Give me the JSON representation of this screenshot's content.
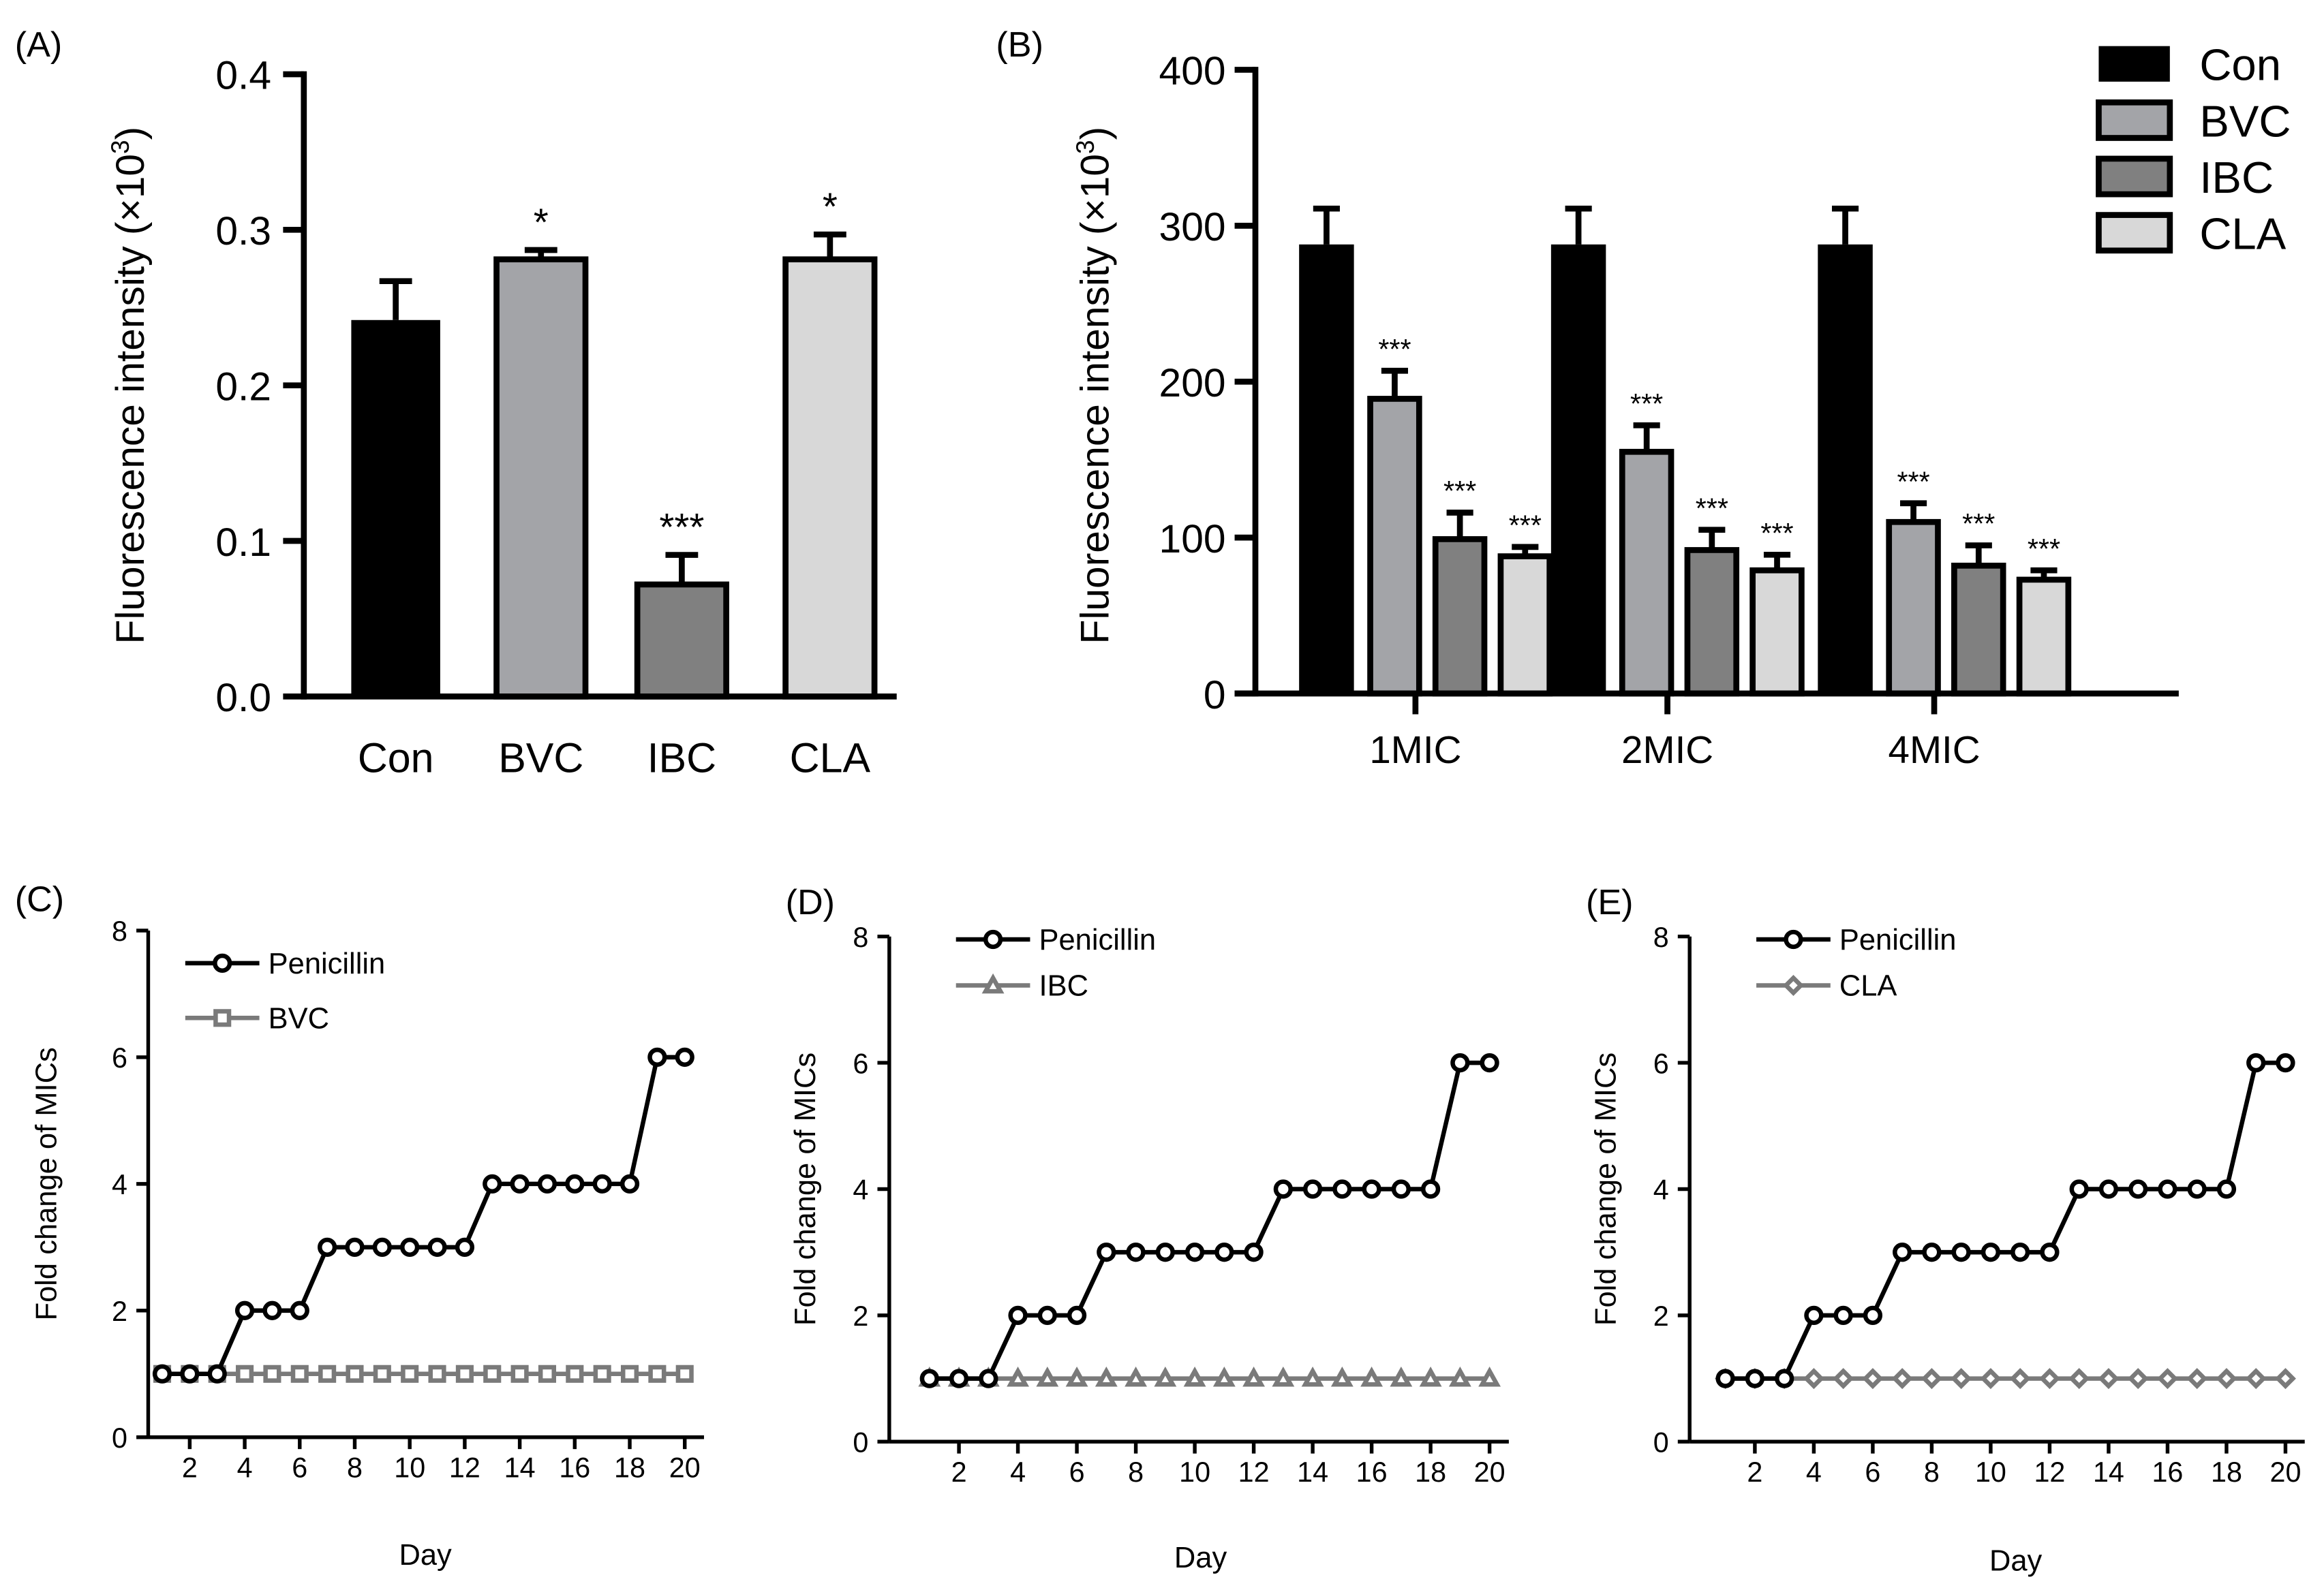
{
  "chart_data": [
    {
      "panel": "(A)",
      "type": "bar",
      "ylabel": "Fluorescence intensity (×10",
      "ylabel_sup": "3",
      "ylabel_end": ")",
      "ylim": [
        0,
        0.4
      ],
      "yticks": [
        "0.0",
        "0.1",
        "0.2",
        "0.3",
        "0.4"
      ],
      "ytick_values": [
        0,
        0.1,
        0.2,
        0.3,
        0.4
      ],
      "categories": [
        "Con",
        "BVC",
        "IBC",
        "CLA"
      ],
      "values": [
        0.242,
        0.281,
        0.072,
        0.281
      ],
      "error_upper": [
        0.267,
        0.287,
        0.091,
        0.297
      ],
      "significance": [
        "",
        "*",
        "***",
        "*"
      ],
      "colors": [
        "#000000",
        "#a3a4a8",
        "#808080",
        "#d8d8d8"
      ]
    },
    {
      "panel": "(B)",
      "type": "bar",
      "ylabel": "Fluorescence intensity (×10",
      "ylabel_sup": "3",
      "ylabel_end": ")",
      "ylim": [
        0,
        400
      ],
      "yticks": [
        "0",
        "100",
        "200",
        "300",
        "400"
      ],
      "ytick_values": [
        0,
        100,
        200,
        300,
        400
      ],
      "categories": [
        "1MIC",
        "2MIC",
        "4MIC"
      ],
      "legend_position": "top-right",
      "series": [
        {
          "name": "Con",
          "color": "#000000",
          "values": [
            288,
            288,
            288
          ],
          "error_upper": [
            311,
            311,
            311
          ],
          "significance": [
            "",
            "",
            ""
          ]
        },
        {
          "name": "BVC",
          "color": "#a3a4a8",
          "values": [
            189,
            155,
            110
          ],
          "error_upper": [
            207,
            172,
            122
          ],
          "significance": [
            "***",
            "***",
            "***"
          ]
        },
        {
          "name": "IBC",
          "color": "#808080",
          "values": [
            99,
            92,
            82
          ],
          "error_upper": [
            116,
            105,
            95
          ],
          "significance": [
            "***",
            "***",
            "***"
          ]
        },
        {
          "name": "CLA",
          "color": "#d8d8d8",
          "values": [
            88,
            79,
            73
          ],
          "error_upper": [
            94,
            89,
            79
          ],
          "significance": [
            "***",
            "***",
            "***"
          ]
        }
      ]
    },
    {
      "panel": "(C)",
      "type": "line",
      "xlabel": "Day",
      "ylabel": "Fold change of MICs",
      "ylim": [
        0,
        8
      ],
      "yticks": [
        "0",
        "2",
        "4",
        "6",
        "8"
      ],
      "xticks": [
        "2",
        "4",
        "6",
        "8",
        "10",
        "12",
        "14",
        "16",
        "18",
        "20"
      ],
      "x": [
        1,
        2,
        3,
        4,
        5,
        6,
        7,
        8,
        9,
        10,
        11,
        12,
        13,
        14,
        15,
        16,
        17,
        18,
        19,
        20
      ],
      "series": [
        {
          "name": "Penicillin",
          "marker": "circle",
          "color": "#000000",
          "values": [
            1,
            1,
            1,
            2,
            2,
            2,
            3,
            3,
            3,
            3,
            3,
            3,
            4,
            4,
            4,
            4,
            4,
            4,
            6,
            6
          ]
        },
        {
          "name": "BVC",
          "marker": "square",
          "color": "#7a7a7a",
          "values": [
            1,
            1,
            1,
            1,
            1,
            1,
            1,
            1,
            1,
            1,
            1,
            1,
            1,
            1,
            1,
            1,
            1,
            1,
            1,
            1
          ]
        }
      ]
    },
    {
      "panel": "(D)",
      "type": "line",
      "xlabel": "Day",
      "ylabel": "Fold change of MICs",
      "ylim": [
        0,
        8
      ],
      "yticks": [
        "0",
        "2",
        "4",
        "6",
        "8"
      ],
      "xticks": [
        "2",
        "4",
        "6",
        "8",
        "10",
        "12",
        "14",
        "16",
        "18",
        "20"
      ],
      "x": [
        1,
        2,
        3,
        4,
        5,
        6,
        7,
        8,
        9,
        10,
        11,
        12,
        13,
        14,
        15,
        16,
        17,
        18,
        19,
        20
      ],
      "series": [
        {
          "name": "Penicillin",
          "marker": "circle",
          "color": "#000000",
          "values": [
            1,
            1,
            1,
            2,
            2,
            2,
            3,
            3,
            3,
            3,
            3,
            3,
            4,
            4,
            4,
            4,
            4,
            4,
            6,
            6
          ]
        },
        {
          "name": "IBC",
          "marker": "triangle",
          "color": "#7a7a7a",
          "values": [
            1,
            1,
            1,
            1,
            1,
            1,
            1,
            1,
            1,
            1,
            1,
            1,
            1,
            1,
            1,
            1,
            1,
            1,
            1,
            1
          ]
        }
      ]
    },
    {
      "panel": "(E)",
      "type": "line",
      "xlabel": "Day",
      "ylabel": "Fold change of MICs",
      "ylim": [
        0,
        8
      ],
      "yticks": [
        "0",
        "2",
        "4",
        "6",
        "8"
      ],
      "xticks": [
        "2",
        "4",
        "6",
        "8",
        "10",
        "12",
        "14",
        "16",
        "18",
        "20"
      ],
      "x": [
        1,
        2,
        3,
        4,
        5,
        6,
        7,
        8,
        9,
        10,
        11,
        12,
        13,
        14,
        15,
        16,
        17,
        18,
        19,
        20
      ],
      "series": [
        {
          "name": "Penicillin",
          "marker": "circle",
          "color": "#000000",
          "values": [
            1,
            1,
            1,
            2,
            2,
            2,
            3,
            3,
            3,
            3,
            3,
            3,
            4,
            4,
            4,
            4,
            4,
            4,
            6,
            6
          ]
        },
        {
          "name": "CLA",
          "marker": "diamond",
          "color": "#7a7a7a",
          "values": [
            1,
            1,
            1,
            1,
            1,
            1,
            1,
            1,
            1,
            1,
            1,
            1,
            1,
            1,
            1,
            1,
            1,
            1,
            1,
            1
          ]
        }
      ]
    }
  ]
}
